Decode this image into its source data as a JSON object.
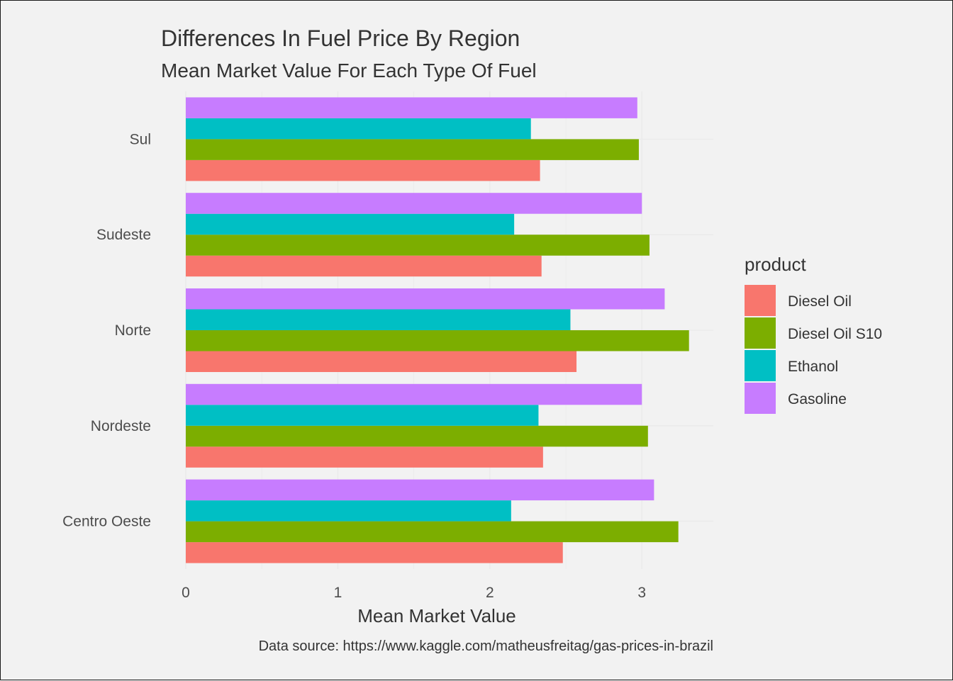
{
  "chart_data": {
    "type": "bar",
    "orientation": "horizontal",
    "title": "Differences In Fuel Price By Region",
    "subtitle": "Mean Market Value For Each Type Of Fuel",
    "xlabel": "Mean Market Value",
    "ylabel": "",
    "caption": "Data source: https://www.kaggle.com/matheusfreitag/gas-prices-in-brazil",
    "categories": [
      "Centro Oeste",
      "Nordeste",
      "Norte",
      "Sudeste",
      "Sul"
    ],
    "xlim": [
      0,
      3.47
    ],
    "xticks": [
      0,
      1,
      2,
      3
    ],
    "grid": true,
    "legend_title": "product",
    "legend_position": "right",
    "series": [
      {
        "name": "Diesel Oil",
        "color": "#F8766D",
        "values": [
          2.48,
          2.35,
          2.57,
          2.34,
          2.33
        ]
      },
      {
        "name": "Diesel Oil S10",
        "color": "#7CAE00",
        "values": [
          3.24,
          3.04,
          3.31,
          3.05,
          2.98
        ]
      },
      {
        "name": "Ethanol",
        "color": "#00BFC4",
        "values": [
          2.14,
          2.32,
          2.53,
          2.16,
          2.27
        ]
      },
      {
        "name": "Gasoline",
        "color": "#C77CFF",
        "values": [
          3.08,
          3.0,
          3.15,
          3.0,
          2.97
        ]
      }
    ]
  }
}
